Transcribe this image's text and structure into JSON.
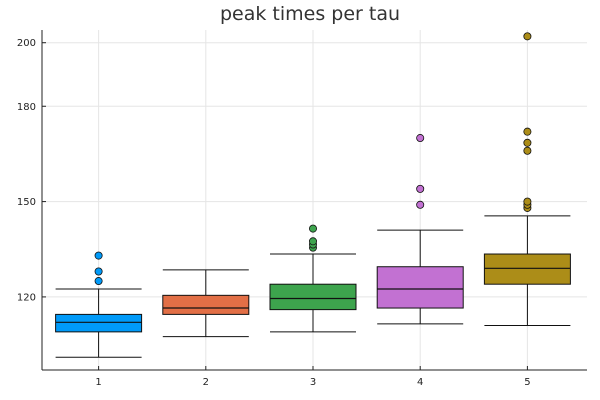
{
  "chart_data": {
    "type": "box",
    "title": "peak times per tau",
    "xlabel": "",
    "ylabel": "",
    "categories": [
      "1",
      "2",
      "3",
      "4",
      "5"
    ],
    "y_ticks": [
      120,
      150,
      180,
      200
    ],
    "ylim": [
      97,
      204
    ],
    "grid": true,
    "legend": "none",
    "series": [
      {
        "category": "1",
        "color": "#009af9",
        "whisker_low": 101,
        "q1": 109,
        "median": 112,
        "q3": 114.5,
        "whisker_high": 122.5,
        "outliers": [
          125,
          128,
          133
        ]
      },
      {
        "category": "2",
        "color": "#e26f46",
        "whisker_low": 107.5,
        "q1": 114.5,
        "median": 116.5,
        "q3": 120.5,
        "whisker_high": 128.5,
        "outliers": []
      },
      {
        "category": "3",
        "color": "#3da44d",
        "whisker_low": 109,
        "q1": 116,
        "median": 119.5,
        "q3": 124,
        "whisker_high": 133.5,
        "outliers": [
          135.5,
          136.5,
          137.5,
          141.5
        ]
      },
      {
        "category": "4",
        "color": "#c271d2",
        "whisker_low": 111.5,
        "q1": 116.5,
        "median": 122.5,
        "q3": 129.5,
        "whisker_high": 141,
        "outliers": [
          149,
          154,
          170
        ]
      },
      {
        "category": "5",
        "color": "#ac8d18",
        "whisker_low": 111,
        "q1": 124,
        "median": 129,
        "q3": 133.5,
        "whisker_high": 145.5,
        "outliers": [
          148,
          149,
          150,
          166,
          168.5,
          172,
          202
        ]
      }
    ]
  }
}
